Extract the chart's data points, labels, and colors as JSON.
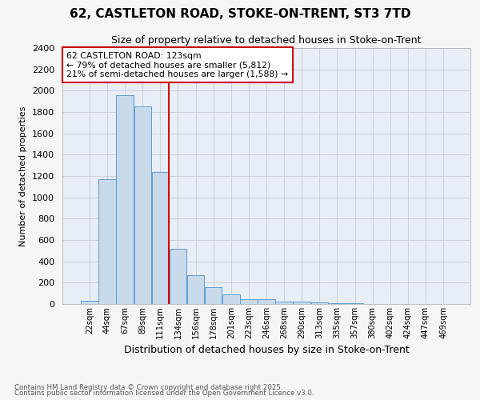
{
  "title": "62, CASTLETON ROAD, STOKE-ON-TRENT, ST3 7TD",
  "subtitle": "Size of property relative to detached houses in Stoke-on-Trent",
  "xlabel": "Distribution of detached houses by size in Stoke-on-Trent",
  "ylabel": "Number of detached properties",
  "categories": [
    "22sqm",
    "44sqm",
    "67sqm",
    "89sqm",
    "111sqm",
    "134sqm",
    "156sqm",
    "178sqm",
    "201sqm",
    "223sqm",
    "246sqm",
    "268sqm",
    "290sqm",
    "313sqm",
    "335sqm",
    "357sqm",
    "380sqm",
    "402sqm",
    "424sqm",
    "447sqm",
    "469sqm"
  ],
  "values": [
    30,
    1170,
    1960,
    1855,
    1240,
    515,
    270,
    155,
    90,
    48,
    42,
    25,
    20,
    18,
    8,
    5,
    3,
    2,
    2,
    2,
    2
  ],
  "bar_color": "#c8daea",
  "bar_edge_color": "#5b9bd5",
  "annotation_text_line1": "62 CASTLETON ROAD: 123sqm",
  "annotation_text_line2": "← 79% of detached houses are smaller (5,812)",
  "annotation_text_line3": "21% of semi-detached houses are larger (1,588) →",
  "annotation_box_color": "#ffffff",
  "annotation_box_edge": "#cc0000",
  "vline_color": "#cc0000",
  "vline_x_index": 4.5,
  "ylim": [
    0,
    2400
  ],
  "yticks": [
    0,
    200,
    400,
    600,
    800,
    1000,
    1200,
    1400,
    1600,
    1800,
    2000,
    2200,
    2400
  ],
  "footer_line1": "Contains HM Land Registry data © Crown copyright and database right 2025.",
  "footer_line2": "Contains public sector information licensed under the Open Government Licence v3.0.",
  "fig_bg_color": "#f5f5f5",
  "plot_bg_color": "#e8eef6",
  "grid_color": "#c8ccd8",
  "title_fontsize": 11,
  "subtitle_fontsize": 9,
  "xlabel_fontsize": 9,
  "ylabel_fontsize": 8
}
